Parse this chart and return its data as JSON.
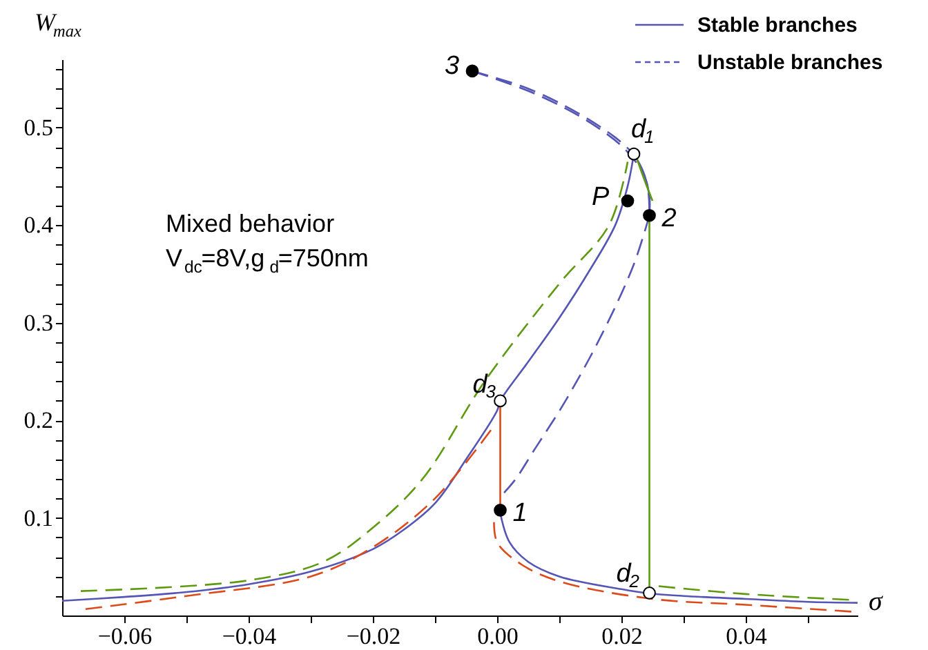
{
  "chart_data": {
    "type": "line",
    "xlabel": "σ",
    "ylabel": "W$_{max}$",
    "xlim": [
      -0.07,
      0.058
    ],
    "ylim": [
      0,
      0.57
    ],
    "xticks": [
      {
        "value": -0.06,
        "label": "−0.06"
      },
      {
        "value": -0.05,
        "label": null
      },
      {
        "value": -0.04,
        "label": "−0.04"
      },
      {
        "value": -0.03,
        "label": null
      },
      {
        "value": -0.02,
        "label": "−0.02"
      },
      {
        "value": -0.01,
        "label": null
      },
      {
        "value": 0,
        "label": "0.00"
      },
      {
        "value": 0.01,
        "label": null
      },
      0.02,
      {
        "value": 0.03,
        "label": null
      },
      0.04,
      {
        "value": 0.05,
        "label": null
      }
    ],
    "yticks": [
      {
        "value": 0.02,
        "label": null
      },
      {
        "value": 0.04,
        "label": null
      },
      {
        "value": 0.06,
        "label": null
      },
      {
        "value": 0.08,
        "label": null
      },
      0.1,
      {
        "value": 0.12,
        "label": null
      },
      {
        "value": 0.14,
        "label": null
      },
      {
        "value": 0.16,
        "label": null
      },
      {
        "value": 0.18,
        "label": null
      },
      0.2,
      {
        "value": 0.22,
        "label": null
      },
      {
        "value": 0.24,
        "label": null
      },
      {
        "value": 0.26,
        "label": null
      },
      {
        "value": 0.28,
        "label": null
      },
      0.3,
      {
        "value": 0.32,
        "label": null
      },
      {
        "value": 0.34,
        "label": null
      },
      {
        "value": 0.36,
        "label": null
      },
      {
        "value": 0.38,
        "label": null
      },
      0.4,
      {
        "value": 0.42,
        "label": null
      },
      {
        "value": 0.44,
        "label": null
      },
      {
        "value": 0.46,
        "label": null
      },
      {
        "value": 0.48,
        "label": null
      },
      0.5,
      {
        "value": 0.52,
        "label": null
      },
      {
        "value": 0.54,
        "label": null
      },
      {
        "value": 0.56,
        "label": null
      }
    ],
    "grid": false,
    "legend": "top right",
    "marker": "none",
    "series": [
      {
        "name": "Stable branches",
        "color": "#5555b5",
        "line_style": "solid",
        "x": [
          -0.07,
          -0.06,
          -0.05,
          -0.04,
          -0.03,
          -0.02,
          -0.015,
          -0.01,
          -0.005,
          0.0,
          0.0005,
          0.005,
          0.01,
          0.015,
          0.019,
          0.021,
          0.022
        ],
        "values": [
          0.015,
          0.019,
          0.024,
          0.032,
          0.045,
          0.068,
          0.088,
          0.115,
          0.16,
          0.21,
          0.22,
          0.26,
          0.305,
          0.355,
          0.4,
          0.44,
          0.473
        ]
      },
      {
        "color": "#5555b5",
        "line_style": "solid",
        "x": [
          0.022,
          0.0235,
          0.0245,
          0.0245
        ],
        "values": [
          0.473,
          0.455,
          0.43,
          0.41
        ]
      },
      {
        "color": "#5555b5",
        "line_style": "solid",
        "x": [
          0.0005,
          0.002,
          0.005,
          0.01,
          0.02,
          0.024,
          0.03,
          0.04,
          0.05,
          0.058
        ],
        "values": [
          0.105,
          0.075,
          0.055,
          0.04,
          0.027,
          0.023,
          0.02,
          0.017,
          0.014,
          0.013
        ]
      },
      {
        "name": "Unstable branches",
        "color": "#5555b5",
        "line_style": "dashed",
        "x": [
          -0.004,
          0.005,
          0.013,
          0.019,
          0.022
        ],
        "values": [
          0.558,
          0.54,
          0.515,
          0.49,
          0.473
        ]
      },
      {
        "color": "#5555b5",
        "line_style": "dashed",
        "x": [
          -0.004,
          0.006,
          0.015,
          0.021,
          0.024,
          0.0245
        ],
        "values": [
          0.558,
          0.535,
          0.505,
          0.475,
          0.445,
          0.41
        ]
      },
      {
        "color": "#5555b5",
        "line_style": "dashed",
        "x": [
          0.0245,
          0.022,
          0.017,
          0.011,
          0.006,
          0.003,
          0.001
        ],
        "values": [
          0.41,
          0.36,
          0.29,
          0.22,
          0.17,
          0.14,
          0.125
        ]
      },
      {
        "color": "#5e9a10",
        "line_style": "dashed",
        "x": [
          -0.067,
          -0.04,
          -0.028,
          -0.02,
          -0.012,
          -0.002,
          0.01,
          0.018,
          0.021
        ],
        "values": [
          0.025,
          0.036,
          0.055,
          0.09,
          0.14,
          0.24,
          0.34,
          0.4,
          0.465
        ]
      },
      {
        "color": "#5e9a10",
        "line_style": "solid",
        "x": [
          0.0225,
          0.0235,
          0.025
        ],
        "values": [
          0.468,
          0.45,
          0.425
        ]
      },
      {
        "color": "#5e9a10",
        "line_style": "solid",
        "x": [
          0.0245,
          0.0245
        ],
        "values": [
          0.405,
          0.028
        ]
      },
      {
        "color": "#5e9a10",
        "line_style": "dashed",
        "x": [
          0.026,
          0.04,
          0.057
        ],
        "values": [
          0.03,
          0.022,
          0.016
        ]
      },
      {
        "color": "#dd4a1a",
        "line_style": "dashed",
        "x": [
          0.057,
          0.04,
          0.025,
          0.01,
          0.004,
          0.0,
          -0.0005
        ],
        "values": [
          0.004,
          0.011,
          0.017,
          0.035,
          0.052,
          0.075,
          0.1
        ]
      },
      {
        "color": "#dd4a1a",
        "line_style": "solid",
        "x": [
          0.0005,
          0.0005
        ],
        "values": [
          0.112,
          0.215
        ]
      },
      {
        "color": "#dd4a1a",
        "line_style": "dashed",
        "x": [
          -0.001,
          -0.01,
          -0.02,
          -0.03,
          -0.05,
          -0.067
        ],
        "values": [
          0.19,
          0.12,
          0.07,
          0.04,
          0.02,
          0.006
        ]
      },
      {
        "type": "scatter",
        "marker": "circle",
        "color": "#000000",
        "x": [
          -0.004,
          0.021,
          0.0245,
          0.0005
        ],
        "values": [
          0.558,
          0.425,
          0.41,
          0.108
        ]
      },
      {
        "type": "scatter",
        "marker": "circle",
        "color": "#ffffff",
        "x": [
          0.022,
          0.0245,
          0.0005
        ],
        "values": [
          0.473,
          0.023,
          0.22
        ]
      }
    ],
    "annotations": [
      {
        "text": "3",
        "x": -0.004,
        "y": 0.558
      },
      {
        "text": "d$_{1}$",
        "x": 0.022,
        "y": 0.473
      },
      {
        "text": "P",
        "x": 0.021,
        "y": 0.425
      },
      {
        "text": "2",
        "x": 0.0245,
        "y": 0.41
      },
      {
        "text": "d$_{3}$",
        "x": 0.0005,
        "y": 0.22
      },
      {
        "text": "1",
        "x": 0.0005,
        "y": 0.108
      },
      {
        "text": "d$_{2}$",
        "x": 0.0245,
        "y": 0.023
      },
      "Mixed behavior",
      "V$_{dc}$=8V,g$_{d}$=750nm"
    ]
  }
}
